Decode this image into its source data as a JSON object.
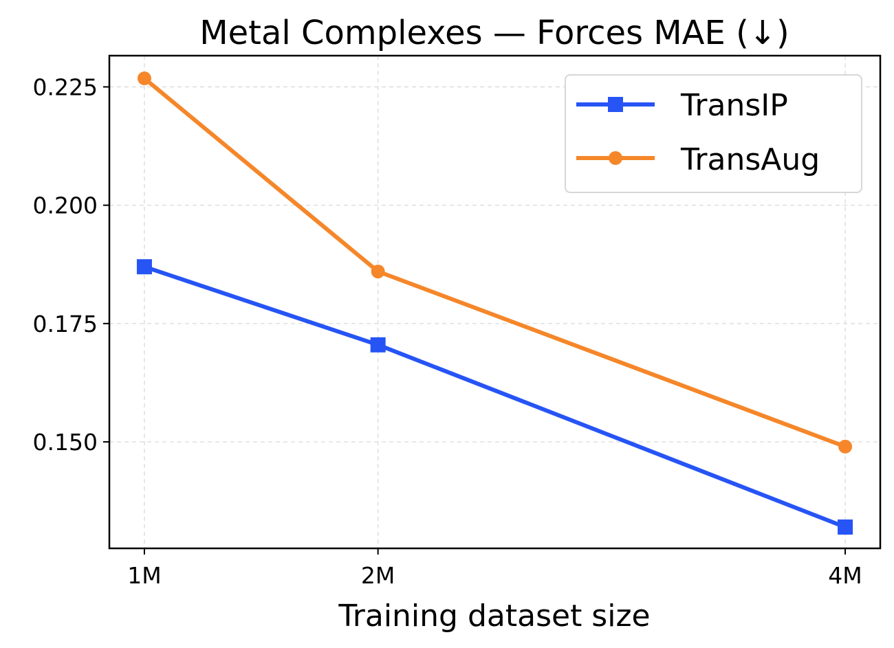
{
  "chart_data": {
    "type": "line",
    "title": "Metal Complexes — Forces MAE (↓)",
    "xlabel": "Training dataset size",
    "ylabel": "",
    "x_values": [
      1,
      2,
      4
    ],
    "x_tick_labels": [
      "1M",
      "2M",
      "4M"
    ],
    "xlim": [
      0.85,
      4.15
    ],
    "ylim": [
      0.1275,
      0.2316
    ],
    "y_ticks": [
      0.15,
      0.175,
      0.2,
      0.225
    ],
    "y_tick_labels": [
      "0.150",
      "0.175",
      "0.200",
      "0.225"
    ],
    "grid": true,
    "legend_position": "top-right",
    "series": [
      {
        "name": "TransIP",
        "color": "#2654f5",
        "marker": "square",
        "values": [
          0.187,
          0.1705,
          0.132
        ]
      },
      {
        "name": "TransAug",
        "color": "#f5872a",
        "marker": "circle",
        "values": [
          0.2268,
          0.186,
          0.149
        ]
      }
    ]
  }
}
